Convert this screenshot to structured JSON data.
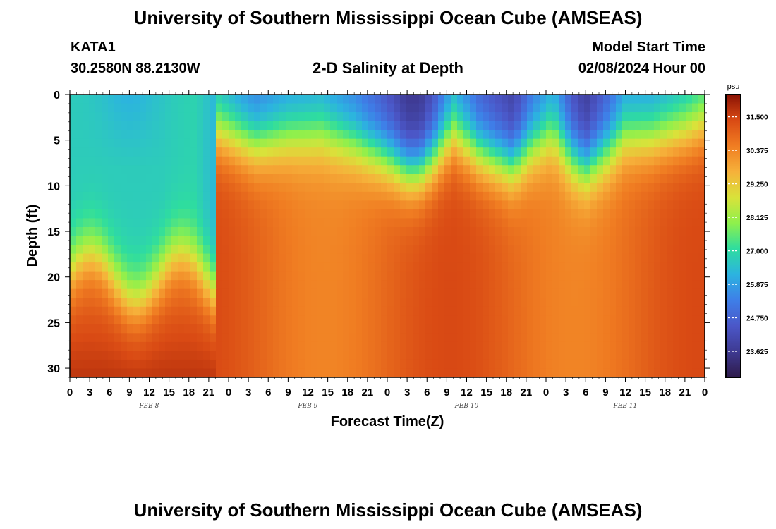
{
  "page": {
    "title": "University of Southern Mississippi Ocean Cube (AMSEAS)",
    "footer_title": "University of Southern Mississippi Ocean Cube (AMSEAS)",
    "station": "KATA1",
    "coords": "30.2580N  88.2130W",
    "plot_title": "2-D Salinity at Depth",
    "model_label": "Model Start Time",
    "model_start": "02/08/2024 Hour 00"
  },
  "chart_data": {
    "type": "heatmap",
    "title": "2-D Salinity at Depth",
    "xlabel": "Forecast Time(Z)",
    "ylabel": "Depth (ft)",
    "x_range": [
      0,
      96
    ],
    "y_range": [
      0,
      31
    ],
    "y_inverted": true,
    "x_ticks": [
      "0",
      "3",
      "6",
      "9",
      "12",
      "15",
      "18",
      "21",
      "0",
      "3",
      "6",
      "9",
      "12",
      "15",
      "18",
      "21",
      "0",
      "3",
      "6",
      "9",
      "12",
      "15",
      "18",
      "21",
      "0",
      "3",
      "6",
      "9",
      "12",
      "15",
      "18",
      "21",
      "0"
    ],
    "y_ticks": [
      "0",
      "5",
      "10",
      "15",
      "20",
      "25",
      "30"
    ],
    "day_labels": [
      "FEB 8",
      "FEB 9",
      "FEB 10",
      "FEB 11"
    ],
    "colorbar": {
      "unit": "psu",
      "range": [
        22.75,
        32.25
      ],
      "ticks": [
        "31.500",
        "30.375",
        "29.250",
        "28.125",
        "27.000",
        "25.875",
        "24.750",
        "23.625"
      ],
      "colors": [
        "#2e1a4a",
        "#3e3a92",
        "#4b57c8",
        "#3e7fe8",
        "#2cb3e0",
        "#2edd9f",
        "#8ef04c",
        "#d9e23a",
        "#f6b13a",
        "#f07d22",
        "#d94a14",
        "#8a1204"
      ]
    },
    "grid": false,
    "legend": "colorbar right"
  }
}
